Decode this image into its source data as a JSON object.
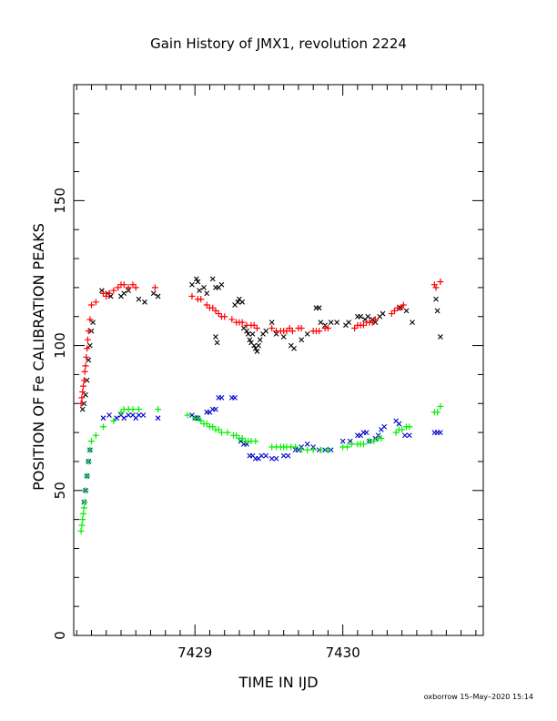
{
  "chart_data": {
    "type": "scatter",
    "title": "Gain History of JMX1, revolution 2224",
    "xlabel": "TIME IN IJD",
    "ylabel": "POSITION OF Fe CALIBRATION PEAKS",
    "footer": "oxborrow 15–May–2020 15:14",
    "xlim": [
      7428.18,
      7430.95
    ],
    "ylim": [
      0,
      190
    ],
    "x_ticks": [
      {
        "value": 7429,
        "label": "7429"
      },
      {
        "value": 7430,
        "label": "7430"
      }
    ],
    "y_ticks": [
      {
        "value": 0,
        "label": "0"
      },
      {
        "value": 50,
        "label": "50"
      },
      {
        "value": 100,
        "label": "100"
      },
      {
        "value": 150,
        "label": "150"
      }
    ],
    "x_minor_step": 0.1,
    "y_minor_step": 10,
    "grid": false,
    "series": [
      {
        "color": "#000000",
        "marker": "x",
        "points": [
          [
            7428.24,
            78
          ],
          [
            7428.25,
            80
          ],
          [
            7428.26,
            83
          ],
          [
            7428.27,
            88
          ],
          [
            7428.28,
            95
          ],
          [
            7428.29,
            100
          ],
          [
            7428.3,
            105
          ],
          [
            7428.31,
            108
          ],
          [
            7428.37,
            119
          ],
          [
            7428.41,
            118
          ],
          [
            7428.43,
            117
          ],
          [
            7428.5,
            117
          ],
          [
            7428.52,
            118
          ],
          [
            7428.55,
            119
          ],
          [
            7428.62,
            116
          ],
          [
            7428.66,
            115
          ],
          [
            7428.72,
            118
          ],
          [
            7428.75,
            117
          ],
          [
            7428.98,
            121
          ],
          [
            7429.01,
            123
          ],
          [
            7429.02,
            122
          ],
          [
            7429.03,
            119
          ],
          [
            7429.06,
            120
          ],
          [
            7429.08,
            118
          ],
          [
            7429.12,
            123
          ],
          [
            7429.14,
            120
          ],
          [
            7429.16,
            120
          ],
          [
            7429.18,
            121
          ],
          [
            7429.14,
            103
          ],
          [
            7429.15,
            101
          ],
          [
            7429.27,
            114
          ],
          [
            7429.29,
            115
          ],
          [
            7429.3,
            116
          ],
          [
            7429.32,
            115
          ],
          [
            7429.33,
            106
          ],
          [
            7429.35,
            105
          ],
          [
            7429.36,
            104
          ],
          [
            7429.37,
            102
          ],
          [
            7429.38,
            101
          ],
          [
            7429.39,
            104
          ],
          [
            7429.4,
            100
          ],
          [
            7429.41,
            99
          ],
          [
            7429.42,
            98
          ],
          [
            7429.43,
            100
          ],
          [
            7429.44,
            102
          ],
          [
            7429.46,
            104
          ],
          [
            7429.48,
            105
          ],
          [
            7429.52,
            108
          ],
          [
            7429.55,
            104
          ],
          [
            7429.6,
            103
          ],
          [
            7429.65,
            100
          ],
          [
            7429.67,
            99
          ],
          [
            7429.72,
            102
          ],
          [
            7429.76,
            104
          ],
          [
            7429.82,
            113
          ],
          [
            7429.84,
            113
          ],
          [
            7429.85,
            108
          ],
          [
            7429.88,
            107
          ],
          [
            7429.92,
            108
          ],
          [
            7429.96,
            108
          ],
          [
            7430.02,
            107
          ],
          [
            7430.04,
            108
          ],
          [
            7430.1,
            110
          ],
          [
            7430.12,
            110
          ],
          [
            7430.15,
            109
          ],
          [
            7430.17,
            110
          ],
          [
            7430.2,
            109
          ],
          [
            7430.22,
            108
          ],
          [
            7430.25,
            110
          ],
          [
            7430.27,
            111
          ],
          [
            7430.39,
            113
          ],
          [
            7430.43,
            112
          ],
          [
            7430.47,
            108
          ],
          [
            7430.63,
            116
          ],
          [
            7430.64,
            112
          ],
          [
            7430.66,
            103
          ]
        ]
      },
      {
        "color": "#ff0000",
        "marker": "+",
        "points": [
          [
            7428.23,
            80
          ],
          [
            7428.235,
            82
          ],
          [
            7428.24,
            84
          ],
          [
            7428.245,
            86
          ],
          [
            7428.25,
            88
          ],
          [
            7428.255,
            91
          ],
          [
            7428.26,
            93
          ],
          [
            7428.265,
            96
          ],
          [
            7428.27,
            99
          ],
          [
            7428.275,
            102
          ],
          [
            7428.28,
            105
          ],
          [
            7428.29,
            109
          ],
          [
            7428.3,
            114
          ],
          [
            7428.33,
            115
          ],
          [
            7428.38,
            118
          ],
          [
            7428.4,
            117
          ],
          [
            7428.42,
            118
          ],
          [
            7428.45,
            119
          ],
          [
            7428.48,
            120
          ],
          [
            7428.5,
            121
          ],
          [
            7428.52,
            121
          ],
          [
            7428.55,
            120
          ],
          [
            7428.58,
            121
          ],
          [
            7428.6,
            120
          ],
          [
            7428.73,
            120
          ],
          [
            7428.98,
            117
          ],
          [
            7429.02,
            116
          ],
          [
            7429.04,
            116
          ],
          [
            7429.08,
            114
          ],
          [
            7429.1,
            113
          ],
          [
            7429.12,
            113
          ],
          [
            7429.14,
            112
          ],
          [
            7429.16,
            111
          ],
          [
            7429.18,
            110
          ],
          [
            7429.2,
            110
          ],
          [
            7429.25,
            109
          ],
          [
            7429.28,
            108
          ],
          [
            7429.3,
            108
          ],
          [
            7429.32,
            108
          ],
          [
            7429.35,
            107
          ],
          [
            7429.38,
            107
          ],
          [
            7429.4,
            107
          ],
          [
            7429.42,
            106
          ],
          [
            7429.52,
            106
          ],
          [
            7429.55,
            105
          ],
          [
            7429.58,
            105
          ],
          [
            7429.6,
            105
          ],
          [
            7429.62,
            105
          ],
          [
            7429.64,
            106
          ],
          [
            7429.66,
            105
          ],
          [
            7429.7,
            106
          ],
          [
            7429.72,
            106
          ],
          [
            7429.8,
            105
          ],
          [
            7429.82,
            105
          ],
          [
            7429.84,
            105
          ],
          [
            7429.88,
            106
          ],
          [
            7429.9,
            106
          ],
          [
            7430.08,
            106
          ],
          [
            7430.1,
            107
          ],
          [
            7430.12,
            107
          ],
          [
            7430.14,
            107
          ],
          [
            7430.16,
            108
          ],
          [
            7430.18,
            108
          ],
          [
            7430.2,
            108
          ],
          [
            7430.22,
            109
          ],
          [
            7430.33,
            111
          ],
          [
            7430.35,
            112
          ],
          [
            7430.37,
            113
          ],
          [
            7430.39,
            113
          ],
          [
            7430.41,
            114
          ],
          [
            7430.62,
            121
          ],
          [
            7430.63,
            120
          ],
          [
            7430.66,
            122
          ]
        ]
      },
      {
        "color": "#0000cc",
        "marker": "x",
        "points": [
          [
            7428.25,
            46
          ],
          [
            7428.26,
            50
          ],
          [
            7428.27,
            55
          ],
          [
            7428.28,
            60
          ],
          [
            7428.29,
            64
          ],
          [
            7428.38,
            75
          ],
          [
            7428.42,
            76
          ],
          [
            7428.47,
            75
          ],
          [
            7428.5,
            76
          ],
          [
            7428.52,
            75
          ],
          [
            7428.55,
            76
          ],
          [
            7428.58,
            76
          ],
          [
            7428.6,
            75
          ],
          [
            7428.62,
            76
          ],
          [
            7428.65,
            76
          ],
          [
            7428.75,
            75
          ],
          [
            7428.98,
            76
          ],
          [
            7429.0,
            75
          ],
          [
            7429.02,
            75
          ],
          [
            7429.08,
            77
          ],
          [
            7429.1,
            77
          ],
          [
            7429.12,
            78
          ],
          [
            7429.14,
            78
          ],
          [
            7429.16,
            82
          ],
          [
            7429.18,
            82
          ],
          [
            7429.25,
            82
          ],
          [
            7429.27,
            82
          ],
          [
            7429.31,
            67
          ],
          [
            7429.33,
            66
          ],
          [
            7429.35,
            66
          ],
          [
            7429.37,
            62
          ],
          [
            7429.39,
            62
          ],
          [
            7429.41,
            61
          ],
          [
            7429.43,
            61
          ],
          [
            7429.45,
            62
          ],
          [
            7429.48,
            62
          ],
          [
            7429.52,
            61
          ],
          [
            7429.55,
            61
          ],
          [
            7429.6,
            62
          ],
          [
            7429.63,
            62
          ],
          [
            7429.68,
            64
          ],
          [
            7429.7,
            64
          ],
          [
            7429.72,
            65
          ],
          [
            7429.76,
            66
          ],
          [
            7429.8,
            65
          ],
          [
            7429.84,
            64
          ],
          [
            7429.88,
            64
          ],
          [
            7429.92,
            64
          ],
          [
            7430.0,
            67
          ],
          [
            7430.05,
            67
          ],
          [
            7430.1,
            69
          ],
          [
            7430.12,
            69
          ],
          [
            7430.14,
            70
          ],
          [
            7430.16,
            70
          ],
          [
            7430.18,
            67
          ],
          [
            7430.22,
            68
          ],
          [
            7430.24,
            69
          ],
          [
            7430.26,
            71
          ],
          [
            7430.28,
            72
          ],
          [
            7430.36,
            74
          ],
          [
            7430.38,
            73
          ],
          [
            7430.42,
            69
          ],
          [
            7430.45,
            69
          ],
          [
            7430.62,
            70
          ],
          [
            7430.64,
            70
          ],
          [
            7430.66,
            70
          ]
        ]
      },
      {
        "color": "#00ee00",
        "marker": "+",
        "points": [
          [
            7428.23,
            36
          ],
          [
            7428.235,
            38
          ],
          [
            7428.24,
            40
          ],
          [
            7428.245,
            42
          ],
          [
            7428.25,
            44
          ],
          [
            7428.255,
            46
          ],
          [
            7428.26,
            50
          ],
          [
            7428.27,
            55
          ],
          [
            7428.28,
            60
          ],
          [
            7428.29,
            64
          ],
          [
            7428.3,
            67
          ],
          [
            7428.33,
            69
          ],
          [
            7428.38,
            72
          ],
          [
            7428.45,
            74
          ],
          [
            7428.5,
            77
          ],
          [
            7428.52,
            78
          ],
          [
            7428.55,
            78
          ],
          [
            7428.58,
            78
          ],
          [
            7428.62,
            78
          ],
          [
            7428.75,
            78
          ],
          [
            7428.95,
            76
          ],
          [
            7429.0,
            75
          ],
          [
            7429.02,
            75
          ],
          [
            7429.04,
            74
          ],
          [
            7429.06,
            73
          ],
          [
            7429.08,
            73
          ],
          [
            7429.1,
            72
          ],
          [
            7429.12,
            72
          ],
          [
            7429.14,
            71
          ],
          [
            7429.16,
            71
          ],
          [
            7429.18,
            70
          ],
          [
            7429.22,
            70
          ],
          [
            7429.26,
            69
          ],
          [
            7429.28,
            69
          ],
          [
            7429.3,
            68
          ],
          [
            7429.32,
            68
          ],
          [
            7429.34,
            67
          ],
          [
            7429.36,
            67
          ],
          [
            7429.38,
            67
          ],
          [
            7429.41,
            67
          ],
          [
            7429.52,
            65
          ],
          [
            7429.55,
            65
          ],
          [
            7429.58,
            65
          ],
          [
            7429.6,
            65
          ],
          [
            7429.62,
            65
          ],
          [
            7429.65,
            65
          ],
          [
            7429.68,
            65
          ],
          [
            7429.72,
            64
          ],
          [
            7429.76,
            64
          ],
          [
            7429.8,
            64
          ],
          [
            7429.85,
            64
          ],
          [
            7429.9,
            64
          ],
          [
            7430.0,
            65
          ],
          [
            7430.03,
            65
          ],
          [
            7430.06,
            66
          ],
          [
            7430.1,
            66
          ],
          [
            7430.12,
            66
          ],
          [
            7430.14,
            66
          ],
          [
            7430.18,
            67
          ],
          [
            7430.21,
            67
          ],
          [
            7430.24,
            68
          ],
          [
            7430.26,
            68
          ],
          [
            7430.36,
            70
          ],
          [
            7430.38,
            71
          ],
          [
            7430.4,
            71
          ],
          [
            7430.43,
            72
          ],
          [
            7430.45,
            72
          ],
          [
            7430.62,
            77
          ],
          [
            7430.64,
            77
          ],
          [
            7430.66,
            79
          ]
        ]
      }
    ]
  }
}
